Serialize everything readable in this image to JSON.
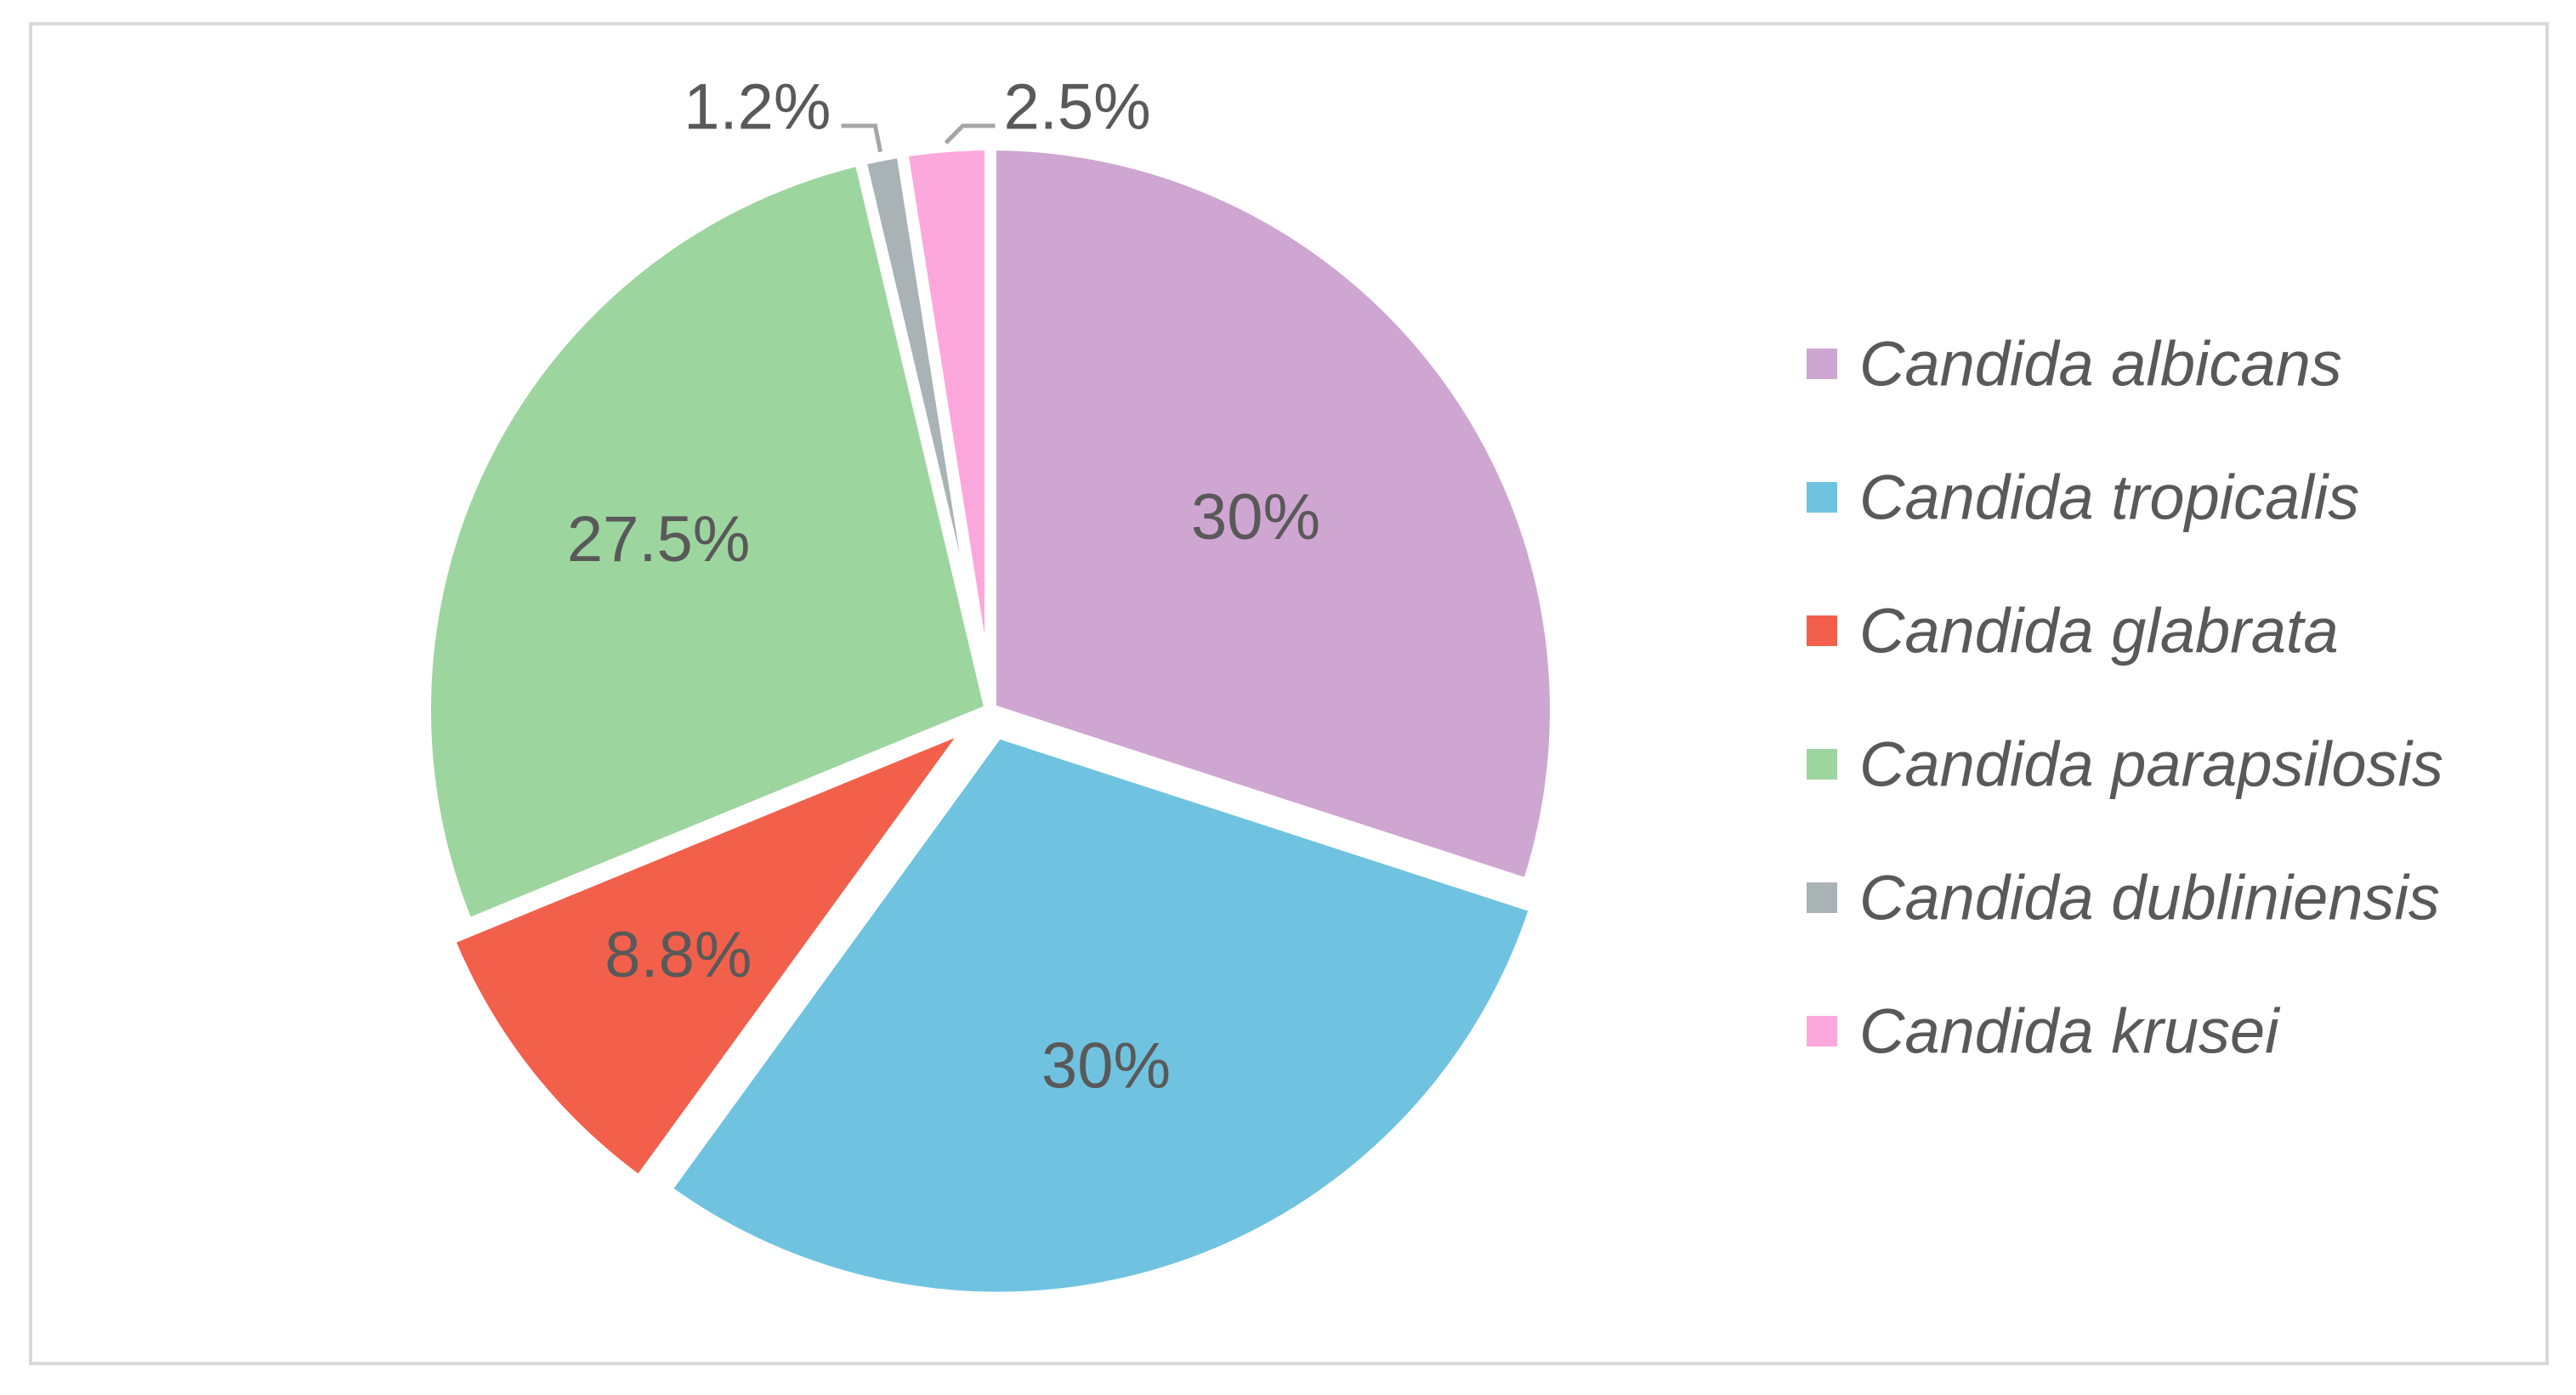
{
  "chart_data": {
    "type": "pie",
    "title": "",
    "start_angle_deg": 0,
    "direction": "clockwise",
    "legend_position": "right",
    "slices": [
      {
        "name": "Candida albicans",
        "value": 30,
        "label": "30%",
        "color": "#cfa6d1"
      },
      {
        "name": "Candida tropicalis",
        "value": 30,
        "label": "30%",
        "color": "#70c3e0"
      },
      {
        "name": "Candida glabrata",
        "value": 8.8,
        "label": "8.8%",
        "color": "#f2604b"
      },
      {
        "name": "Candida parapsilosis",
        "value": 27.5,
        "label": "27.5%",
        "color": "#9dd59e"
      },
      {
        "name": "Candida dubliniensis",
        "value": 1.2,
        "label": "1.2%",
        "color": "#a9b3b5"
      },
      {
        "name": "Candida krusei",
        "value": 2.5,
        "label": "2.5%",
        "color": "#fca8dc"
      }
    ]
  }
}
